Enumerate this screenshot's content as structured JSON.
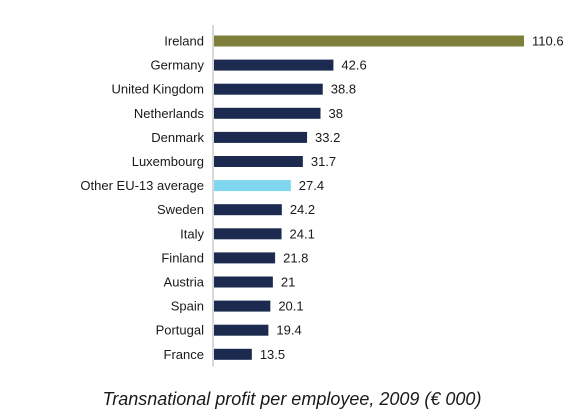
{
  "chart_data": {
    "type": "bar",
    "orientation": "horizontal",
    "categories": [
      "Ireland",
      "Germany",
      "United Kingdom",
      "Netherlands",
      "Denmark",
      "Luxembourg",
      "Other EU-13 average",
      "Sweden",
      "Italy",
      "Finland",
      "Austria",
      "Spain",
      "Portugal",
      "France"
    ],
    "values": [
      110.6,
      42.6,
      38.8,
      38,
      33.2,
      31.7,
      27.4,
      24.2,
      24.1,
      21.8,
      21,
      20.1,
      19.4,
      13.5
    ],
    "value_labels": [
      "110.6",
      "42.6",
      "38.8",
      "38",
      "33.2",
      "31.7",
      "27.4",
      "24.2",
      "24.1",
      "21.8",
      "21",
      "20.1",
      "19.4",
      "13.5"
    ],
    "bar_colors": [
      "#7d7f3a",
      "#1b2a4e",
      "#1b2a4e",
      "#1b2a4e",
      "#1b2a4e",
      "#1b2a4e",
      "#7fd6ee",
      "#1b2a4e",
      "#1b2a4e",
      "#1b2a4e",
      "#1b2a4e",
      "#1b2a4e",
      "#1b2a4e",
      "#1b2a4e"
    ],
    "xlim": [
      0,
      110.6
    ],
    "axis_color": "#b0b0b0",
    "grid": false,
    "caption": "Transnational profit per employee, 2009 (€ 000)"
  }
}
